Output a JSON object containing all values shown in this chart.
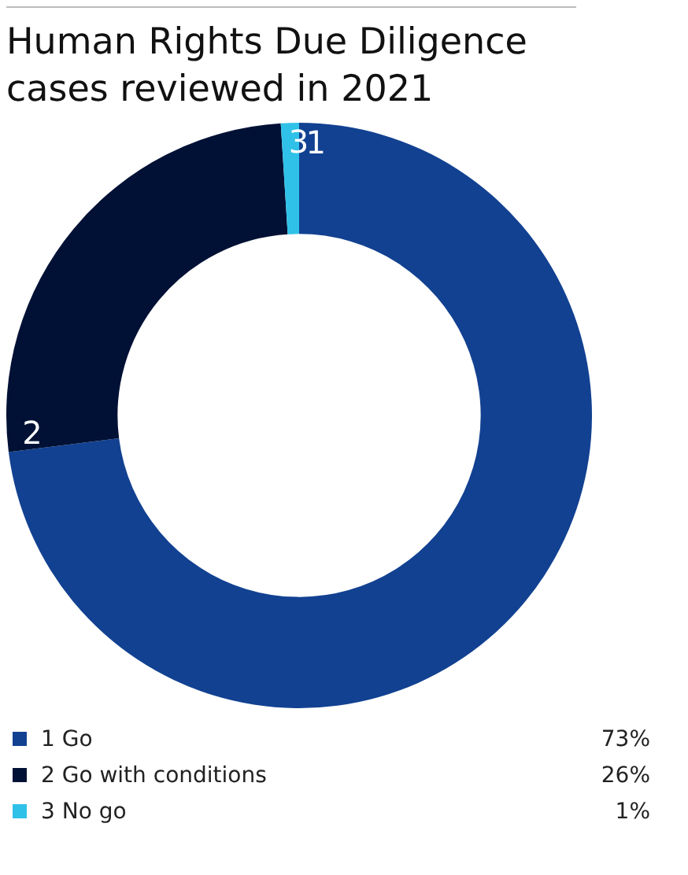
{
  "chart_data": {
    "type": "donut",
    "title": "Human Rights Due Diligence cases reviewed in 2021",
    "categories": [
      "1 Go",
      "2 Go with conditions",
      "3 No go"
    ],
    "values": [
      73,
      26,
      1
    ],
    "value_labels": [
      "73%",
      "26%",
      "1%"
    ],
    "colors": [
      "#124191",
      "#001135",
      "#2fc1e8"
    ],
    "annotations": [
      {
        "text": "1",
        "x": "1 Go"
      },
      {
        "text": "2",
        "x": "2 Go with conditions"
      },
      {
        "text": "3",
        "x": "3 No go"
      }
    ],
    "legend": "bottom"
  }
}
